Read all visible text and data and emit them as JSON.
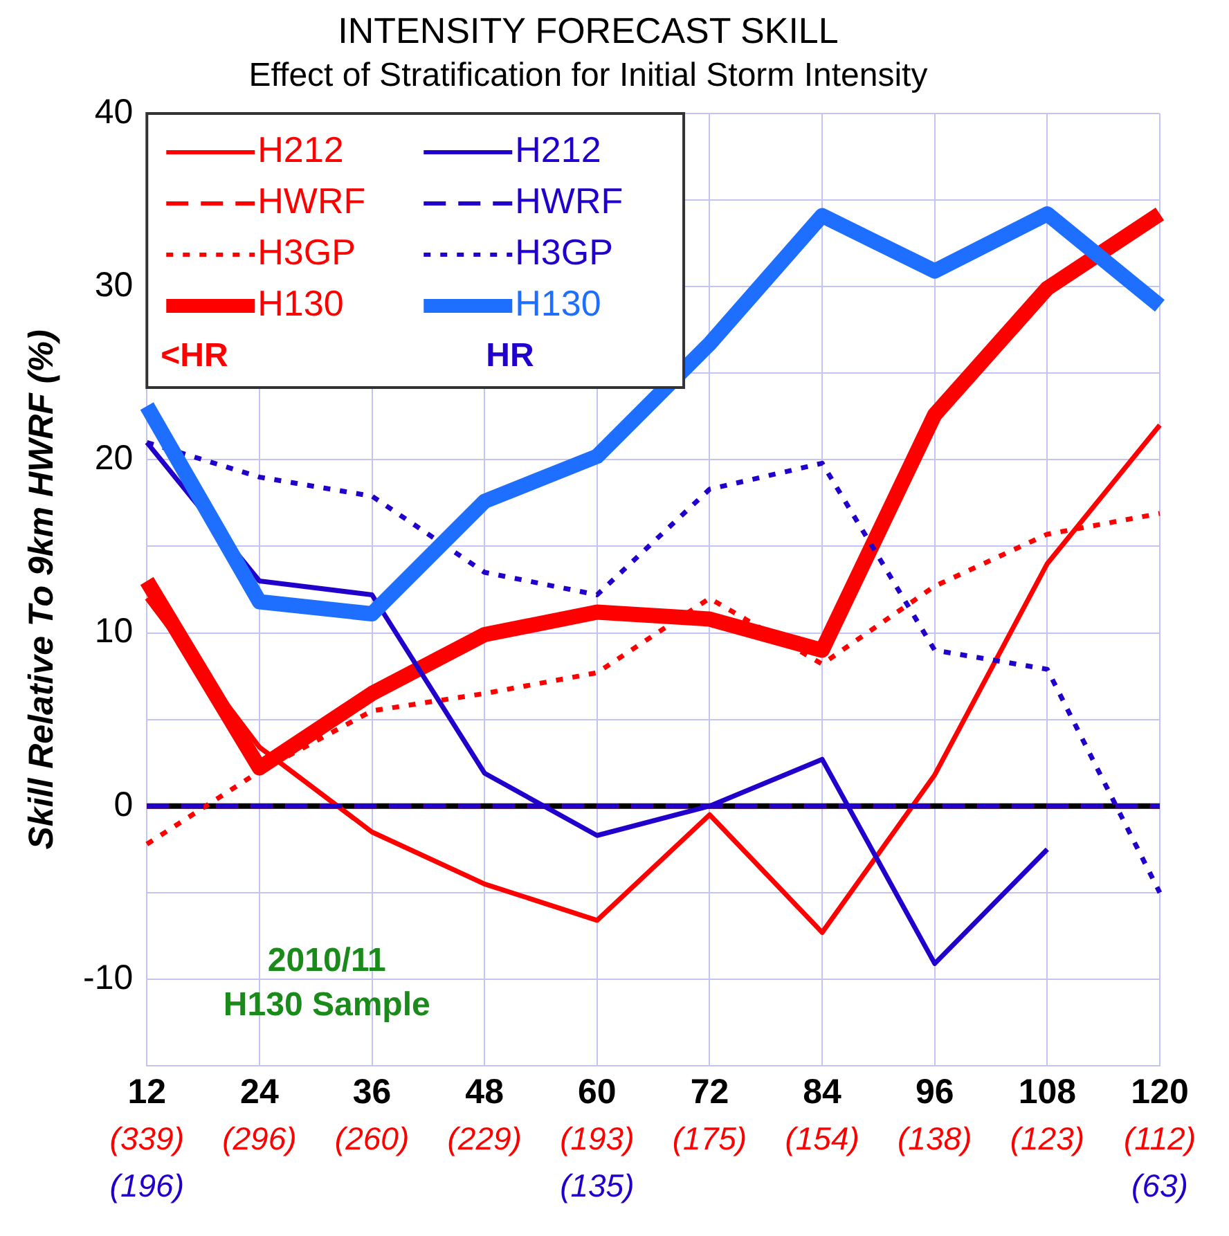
{
  "chart_data": {
    "type": "line",
    "title": "INTENSITY FORECAST SKILL",
    "subtitle": "Effect of Stratification for Initial Storm Intensity",
    "ylabel": "Skill Relative To 9km HWRF (%)",
    "categories": [
      "12\n(339)\n(196)",
      "24\n(296)",
      "36\n(260)",
      "48\n(229)",
      "60\n(193)\n(135)",
      "72\n(175)",
      "84\n(154)",
      "96\n(138)",
      "108\n(123)",
      "120\n(112)\n(63)"
    ],
    "ylim": [
      -15,
      40
    ],
    "yticks": [
      {
        "value": -15,
        "label": null
      },
      -10,
      {
        "value": -5,
        "label": null
      },
      0,
      {
        "value": 5,
        "label": null
      },
      10,
      {
        "value": 15,
        "label": null
      },
      20,
      {
        "value": 25,
        "label": null
      },
      30,
      {
        "value": 35,
        "label": null
      },
      40
    ],
    "grid": true,
    "legend": "top left",
    "marker": "none",
    "series": [
      {
        "name": "H212",
        "color": "#ff0000",
        "line_style": "solid",
        "values": [
          12,
          3.4,
          -1.5,
          -4.5,
          -6.6,
          -0.5,
          -7.3,
          1.8,
          14,
          22
        ]
      },
      {
        "name": "HWRF",
        "color": "#ff0000",
        "line_style": "dashed",
        "values": [
          0,
          0,
          0,
          0,
          0,
          0,
          0,
          0,
          0,
          0
        ]
      },
      {
        "name": "H3GP",
        "color": "#ff0000",
        "line_style": "dotted",
        "values": [
          -2.2,
          2,
          5.5,
          6.5,
          7.7,
          12,
          8.2,
          12.7,
          15.7,
          16.9
        ]
      },
      {
        "name": "H130",
        "color": "#ff0000",
        "line_style": "solid",
        "values": [
          13,
          2.2,
          6.5,
          9.9,
          11.2,
          10.8,
          9,
          22.6,
          29.9,
          34.2
        ]
      },
      {
        "name": "H212",
        "color": "#2200cc",
        "line_style": "solid",
        "values": [
          21,
          13,
          12.2,
          1.9,
          -1.7,
          0,
          2.7,
          -9.1,
          -2.5,
          null
        ]
      },
      {
        "name": "HWRF",
        "color": "#2200cc",
        "line_style": "dashed",
        "values": [
          0,
          0,
          0,
          0,
          0,
          0,
          0,
          0,
          0,
          0
        ]
      },
      {
        "name": "H3GP",
        "color": "#2200cc",
        "line_style": "dotted",
        "values": [
          21,
          19,
          17.9,
          13.5,
          12.2,
          18.3,
          19.8,
          9,
          7.9,
          -5
        ]
      },
      {
        "name": "H130",
        "color": "#1e6eff",
        "line_style": "solid",
        "values": [
          23.1,
          11.8,
          11.1,
          17.6,
          20.2,
          26.7,
          34.1,
          30.9,
          34.2,
          28.9
        ]
      }
    ],
    "ref_lines": [
      {
        "axis": "y",
        "value": 0,
        "color": "#000000"
      }
    ],
    "annotations": [
      "<HR",
      "HR",
      "2010/11",
      "H130 Sample"
    ]
  }
}
